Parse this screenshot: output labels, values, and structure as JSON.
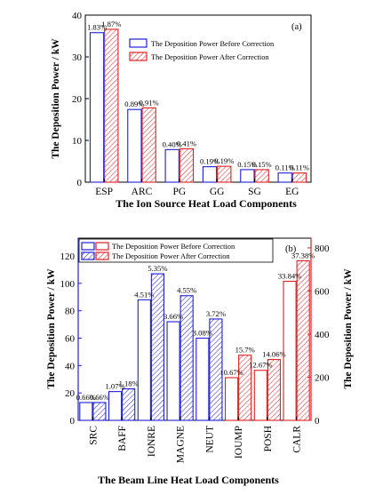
{
  "colors": {
    "blue": "#1f1fd6",
    "red": "#e02020"
  },
  "chart_data": [
    {
      "type": "bar",
      "panel": "(a)",
      "categories": [
        "ESP",
        "ARC",
        "PG",
        "GG",
        "SG",
        "EG"
      ],
      "series": [
        {
          "name": "The Deposition Power Before Correction",
          "values": [
            35.8,
            17.4,
            7.8,
            3.7,
            3.0,
            2.2
          ],
          "labels": [
            "1.83%",
            "0.89%",
            "0.40%",
            "0.19%",
            "0.15%",
            "0.11%"
          ],
          "color": "#1f1fd6",
          "hatch": false
        },
        {
          "name": "The Deposition Power After Correction",
          "values": [
            36.6,
            17.8,
            8.0,
            3.8,
            3.0,
            2.2
          ],
          "labels": [
            "1.87%",
            "0.91%",
            "0.41%",
            "0.19%",
            "0.15%",
            "0.11%"
          ],
          "color": "#e02020",
          "hatch": true
        }
      ],
      "ylabel": "The Deposition Power / kW",
      "xlabel": "The Ion Source Heat Load Components",
      "ylim": [
        0,
        40
      ],
      "yticks": [
        "0",
        "10",
        "20",
        "30",
        "40"
      ],
      "grid": false,
      "legend": "top-right"
    },
    {
      "type": "bar",
      "panel": "(b)",
      "categories": [
        "SRC",
        "BAFF",
        "IONRE",
        "MAGNE",
        "NEUT",
        "IOUMP",
        "POSH",
        "CALR"
      ],
      "left_axis_categories": 5,
      "series": [
        {
          "name": "The Deposition Power Before Correction",
          "values": [
            13,
            21,
            88,
            72,
            60,
            198,
            232,
            645
          ],
          "labels": [
            "0.66%",
            "1.07%",
            "4.51%",
            "3.66%",
            "3.08%",
            "10.67%",
            "12.67%",
            "33.84%"
          ],
          "hatch": false
        },
        {
          "name": "The Deposition Power After Correction",
          "values": [
            13,
            23,
            107,
            91,
            74,
            302,
            282,
            740
          ],
          "labels": [
            "0.66%",
            "1.18%",
            "5.35%",
            "4.55%",
            "3.72%",
            "15.7%",
            "14.06%",
            "37.38%"
          ],
          "hatch": true
        }
      ],
      "ylabel_left": "The Deposition Power / kW",
      "ylabel_right": "The Deposition Power / kW",
      "xlabel": "The Beam Line Heat Load Components",
      "ylim_left": [
        0,
        133
      ],
      "yticks_left": [
        "0",
        "20",
        "40",
        "60",
        "80",
        "100",
        "120"
      ],
      "ylim_right": [
        0,
        845
      ],
      "yticks_right": [
        "0",
        "200",
        "400",
        "600",
        "800"
      ],
      "left_axis_color": "#1f1fd6",
      "right_axis_color": "#e02020",
      "grid": false,
      "legend": "top-left"
    }
  ]
}
